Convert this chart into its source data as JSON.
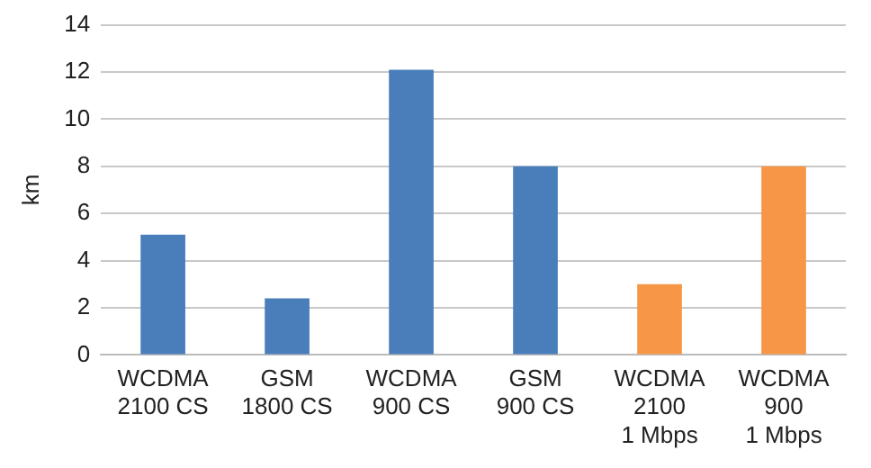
{
  "chart_data": {
    "type": "bar",
    "ylabel": "km",
    "categories": [
      "WCDMA\n2100 CS",
      "GSM\n1800 CS",
      "WCDMA\n900 CS",
      "GSM\n900 CS",
      "WCDMA\n2100\n1 Mbps",
      "WCDMA\n900\n1 Mbps"
    ],
    "values": [
      5.1,
      2.4,
      12.1,
      8,
      3,
      8
    ],
    "colors": [
      "#4a7ebb",
      "#4a7ebb",
      "#4a7ebb",
      "#4a7ebb",
      "#f79646",
      "#f79646"
    ],
    "ylim": [
      0,
      14
    ],
    "yticks": [
      0,
      2,
      4,
      6,
      8,
      10,
      12,
      14
    ],
    "grid": "y",
    "legend": false
  }
}
